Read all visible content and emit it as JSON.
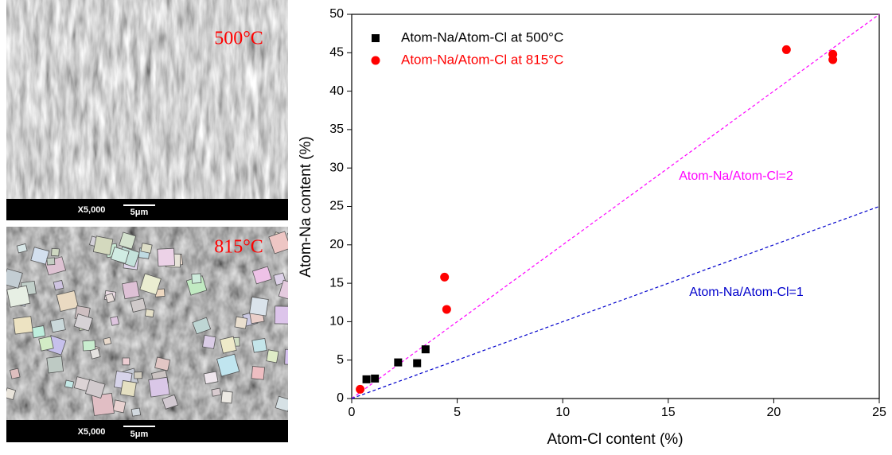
{
  "images": [
    {
      "label": "500°C",
      "magnification": "X5,000",
      "scale": "5μm"
    },
    {
      "label": "815°C",
      "magnification": "X5,000",
      "scale": "5μm"
    }
  ],
  "chart_data": {
    "type": "scatter",
    "x_label": "Atom-Cl content (%)",
    "y_label": "Atom-Na content (%)",
    "xlim": [
      0,
      25
    ],
    "ylim": [
      0,
      50
    ],
    "xticks": [
      0,
      5,
      10,
      15,
      20,
      25
    ],
    "yticks": [
      0,
      5,
      10,
      15,
      20,
      25,
      30,
      35,
      40,
      45,
      50
    ],
    "legend": "upper left",
    "series": [
      {
        "name": "Atom-Na/Atom-Cl at 500°C",
        "color": "#000000",
        "marker": "square",
        "x": [
          0.7,
          1.1,
          2.2,
          3.1,
          3.5
        ],
        "values": [
          2.5,
          2.6,
          4.7,
          4.6,
          6.4
        ]
      },
      {
        "name": "Atom-Na/Atom-Cl at 815°C",
        "color": "#ff0000",
        "marker": "circle",
        "x": [
          0.4,
          4.4,
          4.5,
          20.6,
          22.8,
          22.8
        ],
        "values": [
          1.2,
          15.8,
          11.6,
          45.4,
          44.8,
          44.1
        ]
      }
    ],
    "reference_lines": [
      {
        "slope": 2,
        "label": "Atom-Na/Atom-Cl=2",
        "color": "#ff00ff"
      },
      {
        "slope": 1,
        "label": "Atom-Na/Atom-Cl=1",
        "color": "#0000cc"
      }
    ]
  }
}
